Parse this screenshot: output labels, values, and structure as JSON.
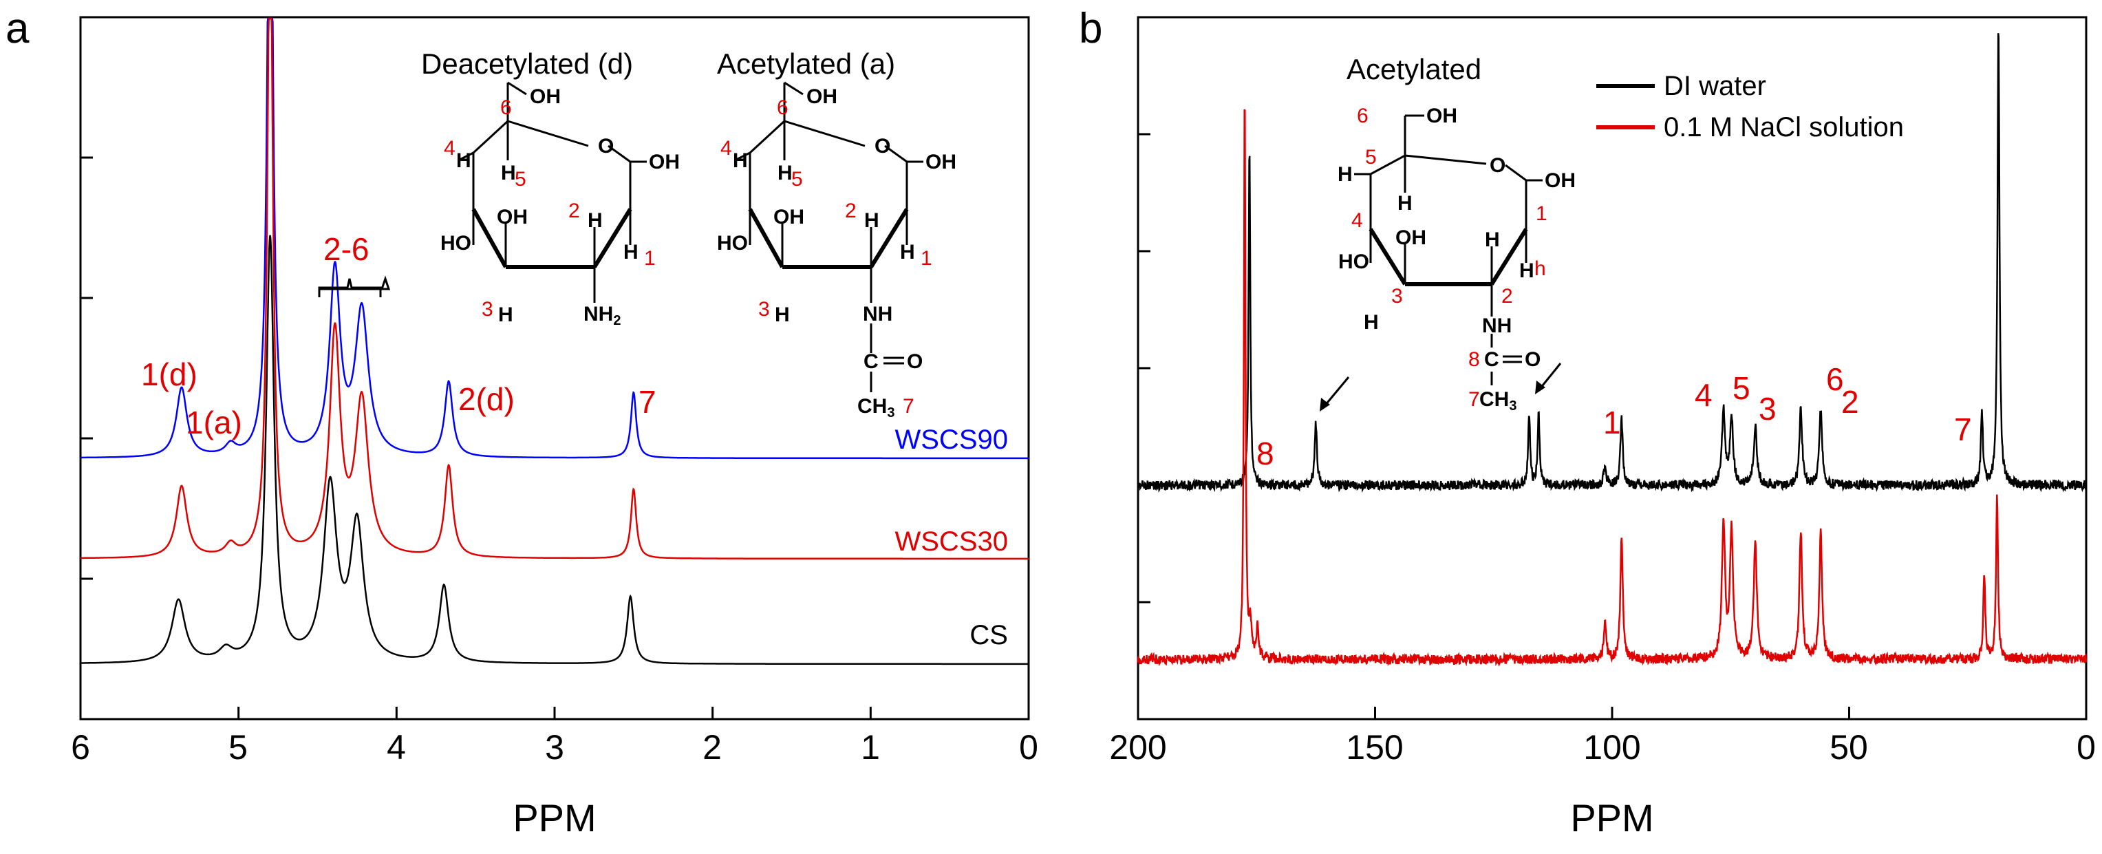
{
  "chart_data": [
    {
      "panel": "a",
      "type": "line",
      "xlabel": "PPM",
      "xlim": [
        6,
        0
      ],
      "xticks": [
        6,
        5,
        4,
        3,
        2,
        1,
        0
      ],
      "yticks_unlabeled": 4,
      "series": [
        {
          "name": "WSCS90",
          "color": "#0000ff",
          "offset": 0.36,
          "peaks": [
            {
              "ppm": 5.36,
              "height": 0.072,
              "width": 0.04
            },
            {
              "ppm": 5.05,
              "height": 0.011,
              "width": 0.04
            },
            {
              "ppm": 4.8,
              "height": 0.75,
              "width": 0.02
            },
            {
              "ppm": 4.39,
              "height": 0.19,
              "width": 0.04
            },
            {
              "ppm": 4.22,
              "height": 0.15,
              "width": 0.05
            },
            {
              "ppm": 3.67,
              "height": 0.078,
              "width": 0.03
            },
            {
              "ppm": 2.5,
              "height": 0.068,
              "width": 0.02
            }
          ]
        },
        {
          "name": "WSCS30",
          "color": "#e00000",
          "offset": 0.18,
          "peaks": [
            {
              "ppm": 5.36,
              "height": 0.074,
              "width": 0.04
            },
            {
              "ppm": 5.05,
              "height": 0.012,
              "width": 0.04
            },
            {
              "ppm": 4.8,
              "height": 0.7,
              "width": 0.02
            },
            {
              "ppm": 4.39,
              "height": 0.23,
              "width": 0.04
            },
            {
              "ppm": 4.22,
              "height": 0.16,
              "width": 0.05
            },
            {
              "ppm": 3.67,
              "height": 0.095,
              "width": 0.03
            },
            {
              "ppm": 2.5,
              "height": 0.072,
              "width": 0.02
            }
          ]
        },
        {
          "name": "CS",
          "color": "#000000",
          "offset": 0.0,
          "peaks": [
            {
              "ppm": 5.38,
              "height": 0.065,
              "width": 0.05
            },
            {
              "ppm": 5.08,
              "height": 0.012,
              "width": 0.05
            },
            {
              "ppm": 4.8,
              "height": 0.44,
              "width": 0.03
            },
            {
              "ppm": 4.42,
              "height": 0.18,
              "width": 0.05
            },
            {
              "ppm": 4.25,
              "height": 0.14,
              "width": 0.05
            },
            {
              "ppm": 3.7,
              "height": 0.08,
              "width": 0.035
            },
            {
              "ppm": 2.52,
              "height": 0.07,
              "width": 0.025
            }
          ]
        }
      ],
      "annotations": [
        "1(d)",
        "1(a)",
        "2-6",
        "2(d)",
        "7"
      ],
      "inset_titles": [
        "Deacetylated (d)",
        "Acetylated (a)"
      ]
    },
    {
      "panel": "b",
      "type": "line",
      "xlabel": "PPM",
      "xlim": [
        200,
        0
      ],
      "xticks": [
        200,
        150,
        100,
        50,
        0
      ],
      "yticks_unlabeled": 5,
      "series": [
        {
          "name": "DI water",
          "color": "#000000",
          "offset": 0.5,
          "peaks": [
            {
              "ppm": 176.5,
              "height": 0.9,
              "width": 0.2
            },
            {
              "ppm": 162.5,
              "height": 0.16,
              "width": 0.3
            },
            {
              "ppm": 117.5,
              "height": 0.18,
              "width": 0.25
            },
            {
              "ppm": 115.5,
              "height": 0.18,
              "width": 0.25
            },
            {
              "ppm": 101.5,
              "height": 0.05,
              "width": 0.3
            },
            {
              "ppm": 98.0,
              "height": 0.17,
              "width": 0.3
            },
            {
              "ppm": 76.5,
              "height": 0.19,
              "width": 0.4
            },
            {
              "ppm": 74.8,
              "height": 0.17,
              "width": 0.4
            },
            {
              "ppm": 69.8,
              "height": 0.15,
              "width": 0.4
            },
            {
              "ppm": 60.2,
              "height": 0.2,
              "width": 0.35
            },
            {
              "ppm": 56.0,
              "height": 0.2,
              "width": 0.35
            },
            {
              "ppm": 22.0,
              "height": 0.2,
              "width": 0.25
            },
            {
              "ppm": 18.5,
              "height": 1.2,
              "width": 0.25
            }
          ]
        },
        {
          "name": "0.1 M NaCl solution",
          "color": "#e00000",
          "offset": 0.0,
          "peaks": [
            {
              "ppm": 177.5,
              "height": 1.5,
              "width": 0.2
            },
            {
              "ppm": 176.3,
              "height": 0.08,
              "width": 0.3
            },
            {
              "ppm": 174.8,
              "height": 0.08,
              "width": 0.3
            },
            {
              "ppm": 101.5,
              "height": 0.1,
              "width": 0.3
            },
            {
              "ppm": 98.0,
              "height": 0.32,
              "width": 0.3
            },
            {
              "ppm": 76.5,
              "height": 0.35,
              "width": 0.4
            },
            {
              "ppm": 74.8,
              "height": 0.33,
              "width": 0.4
            },
            {
              "ppm": 69.8,
              "height": 0.3,
              "width": 0.4
            },
            {
              "ppm": 60.2,
              "height": 0.33,
              "width": 0.35
            },
            {
              "ppm": 56.0,
              "height": 0.33,
              "width": 0.35
            },
            {
              "ppm": 21.5,
              "height": 0.22,
              "width": 0.25
            },
            {
              "ppm": 18.8,
              "height": 0.42,
              "width": 0.25
            }
          ]
        }
      ],
      "annotations": [
        "8",
        "1",
        "4",
        "5",
        "3",
        "6",
        "2",
        "7"
      ],
      "inset_title": "Acetylated",
      "legend": [
        "DI water",
        "0.1 M NaCl solution"
      ]
    }
  ],
  "labels": {
    "panel_a": "a",
    "panel_b": "b",
    "xlabel_a": "PPM",
    "xlabel_b": "PPM",
    "wscs90": "WSCS90",
    "wscs30": "WSCS30",
    "cs": "CS",
    "a_1d": "1(d)",
    "a_1a": "1(a)",
    "a_26": "2-6",
    "a_2d": "2(d)",
    "a_7": "7",
    "title_deacetylated": "Deacetylated (d)",
    "title_acetylated": "Acetylated (a)",
    "title_b": "Acetylated",
    "legend_di": "DI water",
    "legend_nacl": "0.1 M NaCl solution",
    "b_8": "8",
    "b_1": "1",
    "b_4": "4",
    "b_5": "5",
    "b_3": "3",
    "b_6": "6",
    "b_2": "2",
    "b_7": "7"
  },
  "structure": {
    "oh": "OH",
    "ho": "HO",
    "o": "O",
    "h": "H",
    "nh2": "NH2",
    "nh": "NH",
    "c": "C",
    "eq_o": "O",
    "ch3": "CH3",
    "n1": "1",
    "n2": "2",
    "n3": "3",
    "n4": "4",
    "n5": "5",
    "n6": "6",
    "n7": "7",
    "n8": "8",
    "nh_h": "h"
  }
}
